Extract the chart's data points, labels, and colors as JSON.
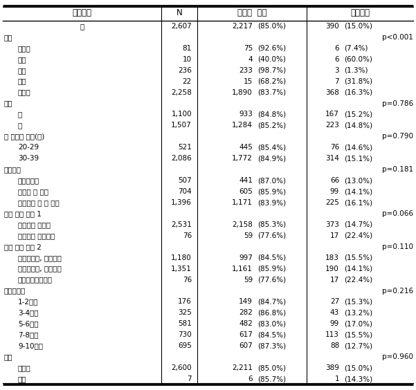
{
  "headers": [
    "독립변수",
    "N",
    "간헐적  치료",
    "치료지속"
  ],
  "rows": [
    {
      "label": "계",
      "indent": 2,
      "N": "2,607",
      "interval": "2,217",
      "interval_pct": "(85.0%)",
      "cont": "390",
      "cont_pct": "(15.0%)",
      "pval": ""
    },
    {
      "label": "암종",
      "indent": 0,
      "N": "",
      "interval": "",
      "interval_pct": "",
      "cont": "",
      "cont_pct": "",
      "pval": "p<0.001"
    },
    {
      "label": "대장암",
      "indent": 1,
      "N": "81",
      "interval": "75",
      "interval_pct": "(92.6%)",
      "cont": "6",
      "cont_pct": "(7.4%)",
      "pval": ""
    },
    {
      "label": "폐암",
      "indent": 1,
      "N": "10",
      "interval": "4",
      "interval_pct": "(40.0%)",
      "cont": "6",
      "cont_pct": "(60.0%)",
      "pval": ""
    },
    {
      "label": "간암",
      "indent": 1,
      "N": "236",
      "interval": "233",
      "interval_pct": "(98.7%)",
      "cont": "3",
      "cont_pct": "(1.3%)",
      "pval": ""
    },
    {
      "label": "위암",
      "indent": 1,
      "N": "22",
      "interval": "15",
      "interval_pct": "(68.2%)",
      "cont": "7",
      "cont_pct": "(31.8%)",
      "pval": ""
    },
    {
      "label": "기타암",
      "indent": 1,
      "N": "2,258",
      "interval": "1,890",
      "interval_pct": "(83.7%)",
      "cont": "368",
      "cont_pct": "(16.3%)",
      "pval": ""
    },
    {
      "label": "성별",
      "indent": 0,
      "N": "",
      "interval": "",
      "interval_pct": "",
      "cont": "",
      "cont_pct": "",
      "pval": "p=0.786"
    },
    {
      "label": "남",
      "indent": 1,
      "N": "1,100",
      "interval": "933",
      "interval_pct": "(84.8%)",
      "cont": "167",
      "cont_pct": "(15.2%)",
      "pval": ""
    },
    {
      "label": "여",
      "indent": 1,
      "N": "1,507",
      "interval": "1,284",
      "interval_pct": "(85.2%)",
      "cont": "223",
      "cont_pct": "(14.8%)",
      "pval": ""
    },
    {
      "label": "암 진단시 연령(세)",
      "indent": 0,
      "N": "",
      "interval": "",
      "interval_pct": "",
      "cont": "",
      "cont_pct": "",
      "pval": "p=0.790"
    },
    {
      "label": "20-29",
      "indent": 1,
      "N": "521",
      "interval": "445",
      "interval_pct": "(85.4%)",
      "cont": "76",
      "cont_pct": "(14.6%)",
      "pval": ""
    },
    {
      "label": "30-39",
      "indent": 1,
      "N": "2,086",
      "interval": "1,772",
      "interval_pct": "(84.9%)",
      "cont": "314",
      "cont_pct": "(15.1%)",
      "pval": ""
    },
    {
      "label": "거주지역",
      "indent": 0,
      "N": "",
      "interval": "",
      "interval_pct": "",
      "cont": "",
      "cont_pct": "",
      "pval": "p=0.181"
    },
    {
      "label": "서울특별시",
      "indent": 1,
      "N": "507",
      "interval": "441",
      "interval_pct": "(87.0%)",
      "cont": "66",
      "cont_pct": "(13.0%)",
      "pval": ""
    },
    {
      "label": "광역시 및 세종",
      "indent": 1,
      "N": "704",
      "interval": "605",
      "interval_pct": "(85.9%)",
      "cont": "99",
      "cont_pct": "(14.1%)",
      "pval": ""
    },
    {
      "label": "행정구역 도 및 제주",
      "indent": 1,
      "N": "1,396",
      "interval": "1,171",
      "interval_pct": "(83.9%)",
      "cont": "225",
      "cont_pct": "(16.1%)",
      "pval": ""
    },
    {
      "label": "의료 보장 유형 1",
      "indent": 0,
      "N": "",
      "interval": "",
      "interval_pct": "",
      "cont": "",
      "cont_pct": "",
      "pval": "p=0.066"
    },
    {
      "label": "건강보험 가입자",
      "indent": 1,
      "N": "2,531",
      "interval": "2,158",
      "interval_pct": "(85.3%)",
      "cont": "373",
      "cont_pct": "(14.7%)",
      "pval": ""
    },
    {
      "label": "의료급여 수급권자",
      "indent": 1,
      "N": "76",
      "interval": "59",
      "interval_pct": "(77.6%)",
      "cont": "17",
      "cont_pct": "(22.4%)",
      "pval": ""
    },
    {
      "label": "의료 보장 유형 2",
      "indent": 0,
      "N": "",
      "interval": "",
      "interval_pct": "",
      "cont": "",
      "cont_pct": "",
      "pval": "p=0.110"
    },
    {
      "label": "지역가입자, 건강보험",
      "indent": 1,
      "N": "1,180",
      "interval": "997",
      "interval_pct": "(84.5%)",
      "cont": "183",
      "cont_pct": "(15.5%)",
      "pval": ""
    },
    {
      "label": "직장가입자, 건강보험",
      "indent": 1,
      "N": "1,351",
      "interval": "1,161",
      "interval_pct": "(85.9%)",
      "cont": "190",
      "cont_pct": "(14.1%)",
      "pval": ""
    },
    {
      "label": "의료급여수급권자",
      "indent": 1,
      "N": "76",
      "interval": "59",
      "interval_pct": "(77.6%)",
      "cont": "17",
      "cont_pct": "(22.4%)",
      "pval": ""
    },
    {
      "label": "건강보험료",
      "indent": 0,
      "N": "",
      "interval": "",
      "interval_pct": "",
      "cont": "",
      "cont_pct": "",
      "pval": "p=0.216"
    },
    {
      "label": "1-2분위",
      "indent": 1,
      "N": "176",
      "interval": "149",
      "interval_pct": "(84.7%)",
      "cont": "27",
      "cont_pct": "(15.3%)",
      "pval": ""
    },
    {
      "label": "3-4분위",
      "indent": 1,
      "N": "325",
      "interval": "282",
      "interval_pct": "(86.8%)",
      "cont": "43",
      "cont_pct": "(13.2%)",
      "pval": ""
    },
    {
      "label": "5-6분위",
      "indent": 1,
      "N": "581",
      "interval": "482",
      "interval_pct": "(83.0%)",
      "cont": "99",
      "cont_pct": "(17.0%)",
      "pval": ""
    },
    {
      "label": "7-8분위",
      "indent": 1,
      "N": "730",
      "interval": "617",
      "interval_pct": "(84.5%)",
      "cont": "113",
      "cont_pct": "(15.5%)",
      "pval": ""
    },
    {
      "label": "9-10분위",
      "indent": 1,
      "N": "695",
      "interval": "607",
      "interval_pct": "(87.3%)",
      "cont": "88",
      "cont_pct": "(12.7%)",
      "pval": ""
    },
    {
      "label": "장애",
      "indent": 0,
      "N": "",
      "interval": "",
      "interval_pct": "",
      "cont": "",
      "cont_pct": "",
      "pval": "p=0.960"
    },
    {
      "label": "비장애",
      "indent": 1,
      "N": "2,600",
      "interval": "2,211",
      "interval_pct": "(85.0%)",
      "cont": "389",
      "cont_pct": "(15.0%)",
      "pval": ""
    },
    {
      "label": "장애",
      "indent": 1,
      "N": "7",
      "interval": "6",
      "interval_pct": "(85.7%)",
      "cont": "1",
      "cont_pct": "(14.3%)",
      "pval": ""
    }
  ],
  "font_size": 7.5,
  "header_font_size": 8.5,
  "bg_color": "white",
  "text_color": "black"
}
